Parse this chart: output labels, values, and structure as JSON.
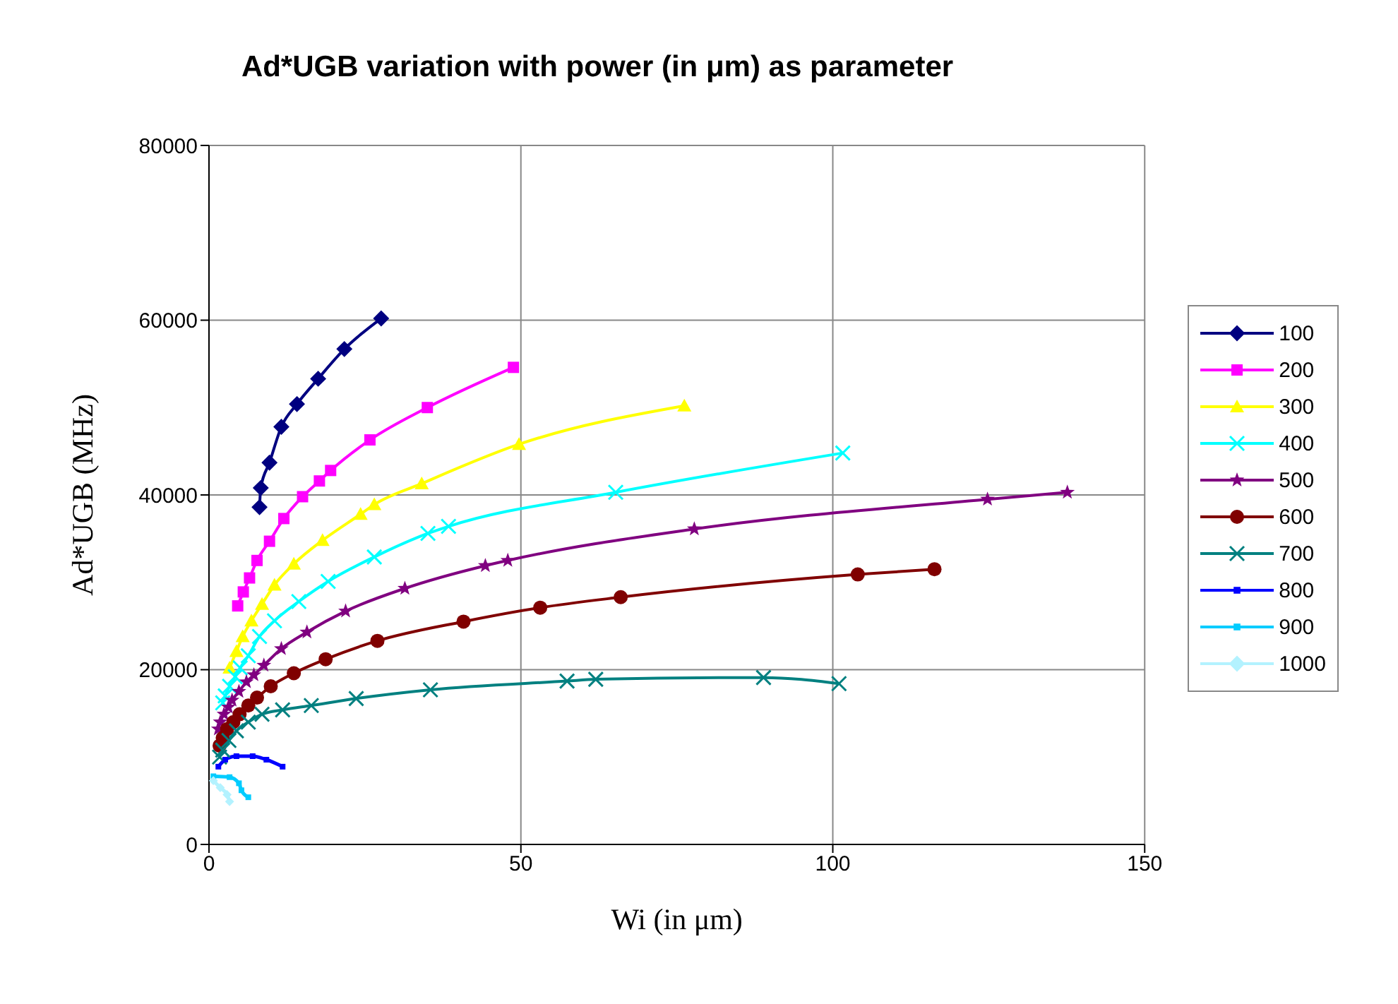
{
  "chart_data": {
    "type": "line",
    "title": "Ad*UGB variation with power (in μm) as parameter",
    "xlabel": "Wi (in μm)",
    "ylabel": "Ad*UGB (MHz)",
    "xlim": [
      0,
      150
    ],
    "xticks": [
      0,
      50,
      100,
      150
    ],
    "ylim": [
      0,
      80000
    ],
    "yticks": [
      0,
      20000,
      40000,
      60000,
      80000
    ],
    "grid": true,
    "legend": "right",
    "line_style": "solid",
    "series": [
      {
        "name": "100",
        "color": "#000080",
        "marker": "diamond",
        "x": [
          8.1,
          8.3,
          9.7,
          11.6,
          14.1,
          17.5,
          21.7,
          27.6
        ],
        "values": [
          38600,
          40800,
          43700,
          47800,
          50400,
          53300,
          56700,
          60200
        ]
      },
      {
        "name": "200",
        "color": "#ff00ff",
        "marker": "square",
        "x": [
          4.6,
          5.5,
          6.5,
          7.7,
          9.7,
          12.0,
          15.0,
          17.7,
          19.5,
          25.8,
          35.0,
          48.8
        ],
        "values": [
          27300,
          28900,
          30500,
          32500,
          34700,
          37300,
          39800,
          41600,
          42800,
          46300,
          50000,
          54600
        ]
      },
      {
        "name": "300",
        "color": "#ffff00",
        "marker": "triangle",
        "x": [
          3.3,
          4.4,
          5.4,
          6.8,
          8.5,
          10.5,
          13.6,
          18.2,
          24.3,
          26.5,
          34.1,
          49.7,
          76.2
        ],
        "values": [
          20200,
          22100,
          23800,
          25600,
          27500,
          29700,
          32100,
          34800,
          37800,
          38900,
          41300,
          45800,
          50200
        ]
      },
      {
        "name": "400",
        "color": "#00ffff",
        "marker": "cross",
        "x": [
          2.2,
          2.6,
          3.3,
          4.2,
          5.0,
          6.3,
          8.1,
          10.5,
          14.4,
          19.1,
          26.5,
          35.1,
          38.4,
          65.2,
          101.6
        ],
        "values": [
          16200,
          17000,
          18100,
          19200,
          20200,
          21600,
          23800,
          25600,
          27800,
          30100,
          32900,
          35600,
          36400,
          40300,
          44800
        ]
      },
      {
        "name": "500",
        "color": "#800080",
        "marker": "star",
        "x": [
          1.5,
          1.8,
          2.4,
          3.1,
          3.7,
          4.8,
          6.0,
          7.2,
          8.8,
          11.6,
          15.7,
          21.9,
          31.4,
          44.3,
          47.9,
          77.8,
          124.8,
          137.6
        ],
        "values": [
          13200,
          14000,
          14900,
          15700,
          16500,
          17500,
          18600,
          19400,
          20500,
          22400,
          24300,
          26700,
          29300,
          31900,
          32500,
          36100,
          39500,
          40300
        ]
      },
      {
        "name": "600",
        "color": "#800000",
        "marker": "circle",
        "x": [
          1.7,
          2.2,
          2.9,
          3.9,
          4.9,
          6.3,
          7.7,
          9.9,
          13.6,
          18.7,
          27.0,
          40.8,
          53.1,
          66.0,
          104.0,
          116.3
        ],
        "values": [
          11300,
          12200,
          13200,
          14000,
          14900,
          15900,
          16800,
          18100,
          19600,
          21200,
          23300,
          25500,
          27100,
          28300,
          30900,
          31500
        ]
      },
      {
        "name": "700",
        "color": "#008080",
        "marker": "cross",
        "x": [
          1.7,
          2.2,
          3.2,
          4.4,
          6.3,
          8.5,
          11.8,
          16.4,
          23.6,
          35.5,
          57.4,
          62.0,
          88.9,
          101.0
        ],
        "values": [
          10000,
          10800,
          11900,
          13000,
          14000,
          14900,
          15400,
          15900,
          16700,
          17700,
          18700,
          18900,
          19100,
          18400
        ]
      },
      {
        "name": "800",
        "color": "#0000ff",
        "marker": "square",
        "x": [
          1.5,
          2.6,
          4.4,
          7.0,
          9.2,
          11.8
        ],
        "values": [
          8900,
          9700,
          10100,
          10100,
          9700,
          8900
        ]
      },
      {
        "name": "900",
        "color": "#00ccff",
        "marker": "square",
        "x": [
          0.7,
          3.3,
          4.8,
          5.2,
          6.3
        ],
        "values": [
          7800,
          7700,
          7000,
          6200,
          5400
        ]
      },
      {
        "name": "1000",
        "color": "#b3f2ff",
        "marker": "diamond",
        "x": [
          0.7,
          1.8,
          2.9,
          3.3
        ],
        "values": [
          7300,
          6500,
          5700,
          4900
        ]
      }
    ]
  }
}
